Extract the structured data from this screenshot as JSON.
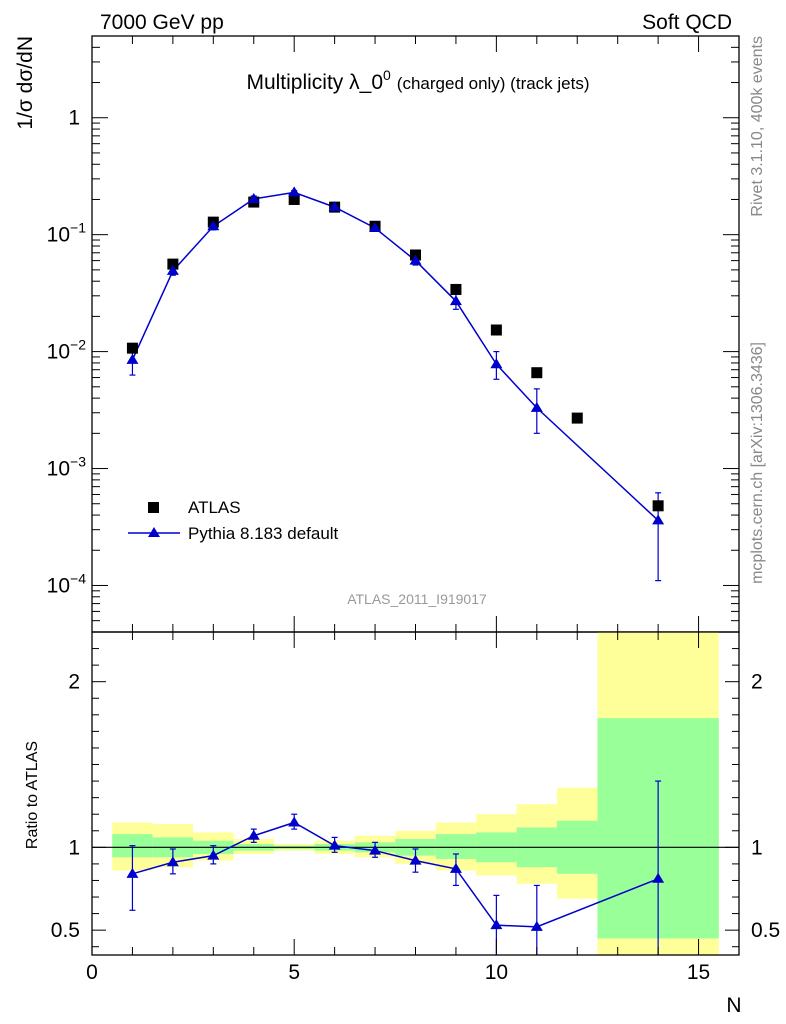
{
  "header": {
    "left": "7000 GeV pp",
    "right": "Soft QCD"
  },
  "side_labels": {
    "rivet": "Rivet 3.1.10,  400k events",
    "mcplots": "mcplots.cern.ch [arXiv:1306.3436]"
  },
  "chart_data": [
    {
      "type": "scatter",
      "panel": "main",
      "title_main": "Multiplicity λ_0",
      "title_sup": "0",
      "title_suffix": "(charged only) (track jets)",
      "ylabel": "1/σ dσ/dN",
      "yscale": "log",
      "ylim": [
        4e-05,
        5
      ],
      "xlim": [
        0,
        16
      ],
      "yticks": [
        {
          "value": 1,
          "base": "1",
          "exp": ""
        },
        {
          "value": 0.1,
          "base": "10",
          "exp": "−1"
        },
        {
          "value": 0.01,
          "base": "10",
          "exp": "−2"
        },
        {
          "value": 0.001,
          "base": "10",
          "exp": "−3"
        },
        {
          "value": 0.0001,
          "base": "10",
          "exp": "−4"
        }
      ],
      "watermark": "ATLAS_2011_I919017",
      "series": [
        {
          "name": "ATLAS",
          "marker": "square",
          "color": "#000000",
          "x": [
            1,
            2,
            3,
            4,
            5,
            6,
            7,
            8,
            9,
            10,
            11,
            12,
            14
          ],
          "y": [
            0.0107,
            0.056,
            0.128,
            0.19,
            0.2,
            0.172,
            0.118,
            0.067,
            0.034,
            0.0153,
            0.0066,
            0.0027,
            0.00048
          ]
        },
        {
          "name": "Pythia 8.183 default",
          "marker": "triangle",
          "color": "#0000cc",
          "line": true,
          "x": [
            1,
            2,
            3,
            4,
            5,
            6,
            7,
            8,
            9,
            10,
            11,
            14
          ],
          "y": [
            0.0085,
            0.049,
            0.118,
            0.202,
            0.23,
            0.172,
            0.114,
            0.06,
            0.027,
            0.0078,
            0.0033,
            0.00036
          ],
          "err_lo": [
            0.0063,
            0.045,
            0.11,
            0.19,
            0.222,
            0.165,
            0.108,
            0.055,
            0.023,
            0.0058,
            0.002,
            0.00011
          ],
          "err_hi": [
            0.0105,
            0.053,
            0.126,
            0.214,
            0.238,
            0.179,
            0.12,
            0.065,
            0.031,
            0.01,
            0.0048,
            0.00062
          ]
        }
      ]
    },
    {
      "type": "line",
      "panel": "ratio",
      "ylabel": "Ratio to ATLAS",
      "xlabel": "N",
      "ylim": [
        0.35,
        2.3
      ],
      "xlim": [
        0,
        16
      ],
      "yticks": [
        0.5,
        1,
        2
      ],
      "xticks": [
        0,
        5,
        10,
        15
      ],
      "reference": 1,
      "bands": [
        {
          "x0": 0.5,
          "x1": 1.5,
          "green": [
            0.94,
            1.08
          ],
          "yellow": [
            0.86,
            1.15
          ]
        },
        {
          "x0": 1.5,
          "x1": 2.5,
          "green": [
            0.94,
            1.06
          ],
          "yellow": [
            0.88,
            1.14
          ]
        },
        {
          "x0": 2.5,
          "x1": 3.5,
          "green": [
            0.96,
            1.04
          ],
          "yellow": [
            0.92,
            1.09
          ]
        },
        {
          "x0": 3.5,
          "x1": 4.5,
          "green": [
            0.98,
            1.02
          ],
          "yellow": [
            0.96,
            1.05
          ]
        },
        {
          "x0": 4.5,
          "x1": 5.5,
          "green": [
            0.99,
            1.01
          ],
          "yellow": [
            0.98,
            1.02
          ]
        },
        {
          "x0": 5.5,
          "x1": 6.5,
          "green": [
            0.98,
            1.02
          ],
          "yellow": [
            0.96,
            1.04
          ]
        },
        {
          "x0": 6.5,
          "x1": 7.5,
          "green": [
            0.97,
            1.03
          ],
          "yellow": [
            0.94,
            1.07
          ]
        },
        {
          "x0": 7.5,
          "x1": 8.5,
          "green": [
            0.95,
            1.05
          ],
          "yellow": [
            0.9,
            1.1
          ]
        },
        {
          "x0": 8.5,
          "x1": 9.5,
          "green": [
            0.93,
            1.08
          ],
          "yellow": [
            0.86,
            1.15
          ]
        },
        {
          "x0": 9.5,
          "x1": 10.5,
          "green": [
            0.91,
            1.09
          ],
          "yellow": [
            0.83,
            1.2
          ]
        },
        {
          "x0": 10.5,
          "x1": 11.5,
          "green": [
            0.88,
            1.12
          ],
          "yellow": [
            0.78,
            1.26
          ]
        },
        {
          "x0": 11.5,
          "x1": 12.5,
          "green": [
            0.84,
            1.16
          ],
          "yellow": [
            0.69,
            1.36
          ]
        },
        {
          "x0": 12.5,
          "x1": 15.5,
          "green": [
            0.45,
            1.78
          ],
          "yellow": [
            0.35,
            2.3
          ]
        }
      ],
      "series": [
        {
          "name": "Pythia 8.183 default",
          "color": "#0000cc",
          "x": [
            1,
            2,
            3,
            4,
            5,
            6,
            7,
            8,
            9,
            10,
            11,
            14
          ],
          "y": [
            0.84,
            0.91,
            0.95,
            1.07,
            1.15,
            1.01,
            0.98,
            0.92,
            0.87,
            0.53,
            0.52,
            0.81
          ],
          "err_lo": [
            0.62,
            0.84,
            0.9,
            1.03,
            1.11,
            0.97,
            0.94,
            0.85,
            0.77,
            0.35,
            0.35,
            0.35
          ],
          "err_hi": [
            1.01,
            0.99,
            1.01,
            1.11,
            1.2,
            1.06,
            1.03,
            0.99,
            0.96,
            0.71,
            0.77,
            1.4
          ]
        }
      ]
    }
  ]
}
